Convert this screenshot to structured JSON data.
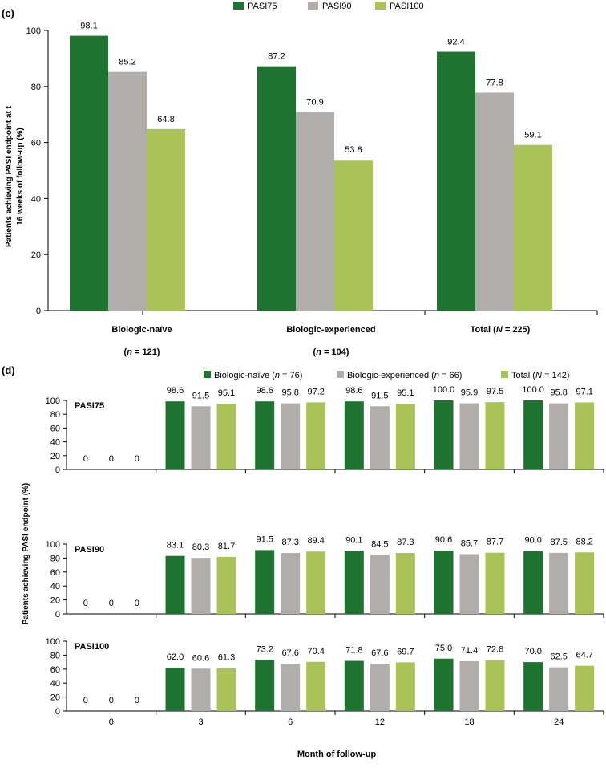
{
  "colors": {
    "PASI75": "#1f7330",
    "PASI90": "#b0adab",
    "PASI100": "#aac358",
    "naive": "#1f7330",
    "experienced": "#b0adab",
    "total": "#aac358"
  },
  "panel_c": {
    "label": "(c)",
    "ylabel_line1": "Patients achieving PASI endpoint at t",
    "ylabel_line2": "16 weeks of follow-up (%)",
    "legend": [
      "PASI75",
      "PASI90",
      "PASI100"
    ],
    "groups": [
      {
        "name": "Biologic-naïve",
        "n_prefix": "(",
        "n_sym": "n",
        "n_suffix": " = 121)"
      },
      {
        "name": "Biologic-experienced",
        "n_prefix": "(",
        "n_sym": "n",
        "n_suffix": " = 104)"
      },
      {
        "name": "Total (",
        "n_sym": "N",
        "n_suffix": " = 225)"
      }
    ]
  },
  "panel_d": {
    "label": "(d)",
    "ylabel": "Patients achieving PASI endpoint (%)",
    "xlabel": "Month of follow-up",
    "legend": [
      {
        "pre": "Biologic-naïve (",
        "sym": "n",
        "post": " = 76)"
      },
      {
        "pre": "Biologic-experienced (",
        "sym": "n",
        "post": " = 66)"
      },
      {
        "pre": "Total (",
        "sym": "N",
        "post": " = 142)"
      }
    ],
    "subplots": [
      "PASI75",
      "PASI90",
      "PASI100"
    ]
  },
  "chart_data": [
    {
      "type": "bar",
      "title": "(c)",
      "ylabel": "Patients achieving PASI endpoint at t 16 weeks of follow-up (%)",
      "categories": [
        "Biologic-naïve (n = 121)",
        "Biologic-experienced (n = 104)",
        "Total (N = 225)"
      ],
      "series": [
        {
          "name": "PASI75",
          "values": [
            98.1,
            87.2,
            92.4
          ]
        },
        {
          "name": "PASI90",
          "values": [
            85.2,
            70.9,
            77.8
          ]
        },
        {
          "name": "PASI100",
          "values": [
            64.8,
            53.8,
            59.1
          ]
        }
      ],
      "labels": [
        [
          "98.1",
          "87.2",
          "92.4"
        ],
        [
          "85.2",
          "70.9",
          "77.8"
        ],
        [
          "64.8",
          "53.8",
          "59.1"
        ]
      ],
      "ylim": [
        0,
        100
      ],
      "yticks": [
        "0",
        "20",
        "40",
        "60",
        "80",
        "100"
      ]
    },
    {
      "type": "bar",
      "title": "(d)",
      "xlabel": "Month of follow-up",
      "ylabel": "Patients achieving PASI endpoint (%)",
      "categories": [
        "0",
        "3",
        "6",
        "12",
        "18",
        "24"
      ],
      "ylim": [
        0,
        100
      ],
      "yticks": [
        "0",
        "20",
        "40",
        "60",
        "80",
        "100"
      ],
      "panels": [
        {
          "name": "PASI75",
          "series": [
            {
              "name": "Biologic-naïve (n = 76)",
              "values": [
                0,
                98.6,
                98.6,
                98.6,
                100.0,
                100.0
              ],
              "labels": [
                "0",
                "98.6",
                "98.6",
                "98.6",
                "100.0",
                "100.0"
              ]
            },
            {
              "name": "Biologic-experienced (n = 66)",
              "values": [
                0,
                91.5,
                95.8,
                91.5,
                95.9,
                95.8
              ],
              "labels": [
                "0",
                "91.5",
                "95.8",
                "91.5",
                "95.9",
                "95.8"
              ]
            },
            {
              "name": "Total (N = 142)",
              "values": [
                0,
                95.1,
                97.2,
                95.1,
                97.5,
                97.1
              ],
              "labels": [
                "0",
                "95.1",
                "97.2",
                "95.1",
                "97.5",
                "97.1"
              ]
            }
          ]
        },
        {
          "name": "PASI90",
          "series": [
            {
              "name": "Biologic-naïve (n = 76)",
              "values": [
                0,
                83.1,
                91.5,
                90.1,
                90.6,
                90.0
              ],
              "labels": [
                "0",
                "83.1",
                "91.5",
                "90.1",
                "90.6",
                "90.0"
              ]
            },
            {
              "name": "Biologic-experienced (n = 66)",
              "values": [
                0,
                80.3,
                87.3,
                84.5,
                85.7,
                87.5
              ],
              "labels": [
                "0",
                "80.3",
                "87.3",
                "84.5",
                "85.7",
                "87.5"
              ]
            },
            {
              "name": "Total (N = 142)",
              "values": [
                0,
                81.7,
                89.4,
                87.3,
                87.7,
                88.2
              ],
              "labels": [
                "0",
                "81.7",
                "89.4",
                "87.3",
                "87.7",
                "88.2"
              ]
            }
          ]
        },
        {
          "name": "PASI100",
          "series": [
            {
              "name": "Biologic-naïve (n = 76)",
              "values": [
                0,
                62.0,
                73.2,
                71.8,
                75.0,
                70.0
              ],
              "labels": [
                "0",
                "62.0",
                "73.2",
                "71.8",
                "75.0",
                "70.0"
              ]
            },
            {
              "name": "Biologic-experienced (n = 66)",
              "values": [
                0,
                60.6,
                67.6,
                67.6,
                71.4,
                62.5
              ],
              "labels": [
                "0",
                "60.6",
                "67.6",
                "67.6",
                "71.4",
                "62.5"
              ]
            },
            {
              "name": "Total (N = 142)",
              "values": [
                0,
                61.3,
                70.4,
                69.7,
                72.8,
                64.7
              ],
              "labels": [
                "0",
                "61.3",
                "70.4",
                "69.7",
                "72.8",
                "64.7"
              ]
            }
          ]
        }
      ]
    }
  ]
}
